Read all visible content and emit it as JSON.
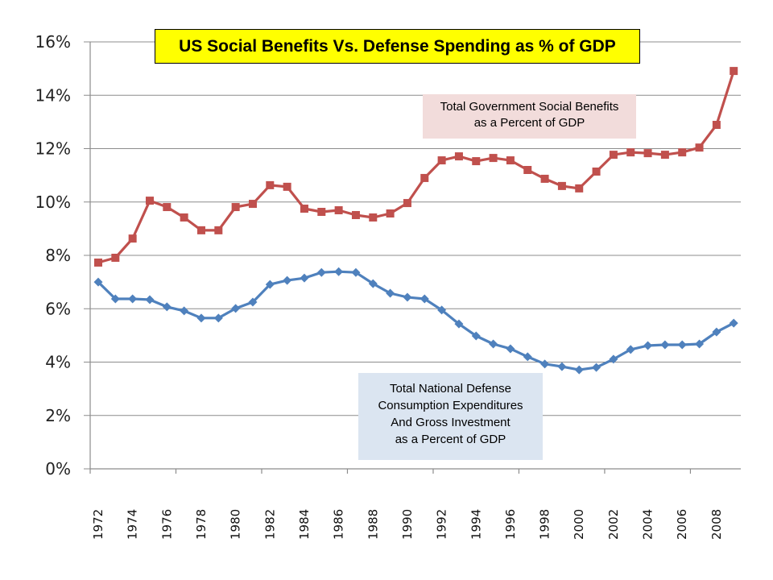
{
  "chart_data": {
    "type": "line",
    "title": "US Social Benefits Vs. Defense Spending as % of GDP",
    "xlabel": "",
    "ylabel": "",
    "ylim": [
      0,
      16
    ],
    "y_ticks": [
      "0%",
      "2%",
      "4%",
      "6%",
      "8%",
      "10%",
      "12%",
      "14%",
      "16%"
    ],
    "y_tick_values": [
      0,
      2,
      4,
      6,
      8,
      10,
      12,
      14,
      16
    ],
    "x": [
      1972,
      1973,
      1974,
      1975,
      1976,
      1977,
      1978,
      1979,
      1980,
      1981,
      1982,
      1983,
      1984,
      1985,
      1986,
      1987,
      1988,
      1989,
      1990,
      1991,
      1992,
      1993,
      1994,
      1995,
      1996,
      1997,
      1998,
      1999,
      2000,
      2001,
      2002,
      2003,
      2004,
      2005,
      2006,
      2007,
      2008,
      2009
    ],
    "x_tick_labels": [
      "1972",
      "1974",
      "1976",
      "1978",
      "1980",
      "1982",
      "1984",
      "1986",
      "1988",
      "1990",
      "1992",
      "1994",
      "1996",
      "1998",
      "2000",
      "2002",
      "2004",
      "2006",
      "2008"
    ],
    "grid": true,
    "legend": "none",
    "series": [
      {
        "name": "Total Government Social Benefits as a Percent of GDP",
        "color": "#c0504d",
        "marker": "square",
        "values": [
          7.73,
          7.91,
          8.63,
          10.05,
          9.81,
          9.42,
          8.94,
          8.94,
          9.81,
          9.93,
          10.63,
          10.57,
          9.75,
          9.63,
          9.69,
          9.51,
          9.42,
          9.57,
          9.96,
          10.9,
          11.56,
          11.71,
          11.53,
          11.65,
          11.56,
          11.2,
          10.87,
          10.6,
          10.51,
          11.14,
          11.77,
          11.86,
          11.83,
          11.77,
          11.86,
          12.04,
          12.89,
          14.91
        ]
      },
      {
        "name": "Total National Defense Consumption Expenditures And Gross Investment as a Percent of GDP",
        "color": "#4f81bd",
        "marker": "diamond",
        "values": [
          7.0,
          6.37,
          6.37,
          6.34,
          6.07,
          5.92,
          5.65,
          5.65,
          6.01,
          6.25,
          6.91,
          7.06,
          7.15,
          7.36,
          7.39,
          7.36,
          6.94,
          6.58,
          6.43,
          6.37,
          5.95,
          5.43,
          4.98,
          4.68,
          4.5,
          4.2,
          3.93,
          3.83,
          3.71,
          3.8,
          4.11,
          4.47,
          4.62,
          4.65,
          4.65,
          4.68,
          5.13,
          5.46
        ]
      }
    ],
    "annotations": [
      {
        "lines": [
          "Total Government Social Benefits",
          "as a Percent of GDP"
        ],
        "background": "#f2dcdb",
        "placement": "upper-right"
      },
      {
        "lines": [
          "Total National Defense",
          "Consumption Expenditures",
          "And Gross Investment",
          "as a Percent of GDP"
        ],
        "background": "#dbe5f1",
        "placement": "lower-center"
      }
    ],
    "title_background": "#ffff00"
  }
}
